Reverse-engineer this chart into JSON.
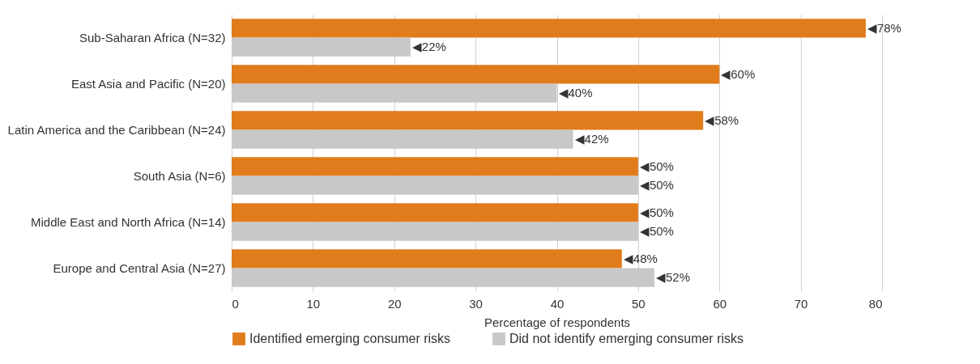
{
  "chart_data": {
    "type": "bar",
    "orientation": "horizontal",
    "xlabel": "Percentage of respondents",
    "categories": [
      "Sub-Saharan Africa (N=32)",
      "East Asia and Pacific (N=20)",
      "Latin America and the Caribbean (N=24)",
      "South Asia (N=6)",
      "Middle East and North Africa (N=14)",
      "Europe and Central Asia (N=27)"
    ],
    "series": [
      {
        "name": "Identified emerging consumer risks",
        "color": "#e07c1b",
        "values": [
          78,
          60,
          58,
          50,
          50,
          48
        ],
        "value_labels": [
          "◀78%",
          "◀60%",
          "◀58%",
          "◀50%",
          "◀50%",
          "◀48%"
        ]
      },
      {
        "name": "Did not identify emerging consumer risks",
        "color": "#c8c8c8",
        "values": [
          22,
          40,
          42,
          50,
          50,
          52
        ],
        "value_labels": [
          "◀22%",
          "◀40%",
          "◀42%",
          "◀50%",
          "◀50%",
          "◀52%"
        ]
      }
    ],
    "xlim": [
      0,
      80
    ],
    "xticks": [
      0,
      10,
      20,
      30,
      40,
      50,
      60,
      70,
      80
    ],
    "grid": "x",
    "legend": "bottom"
  }
}
